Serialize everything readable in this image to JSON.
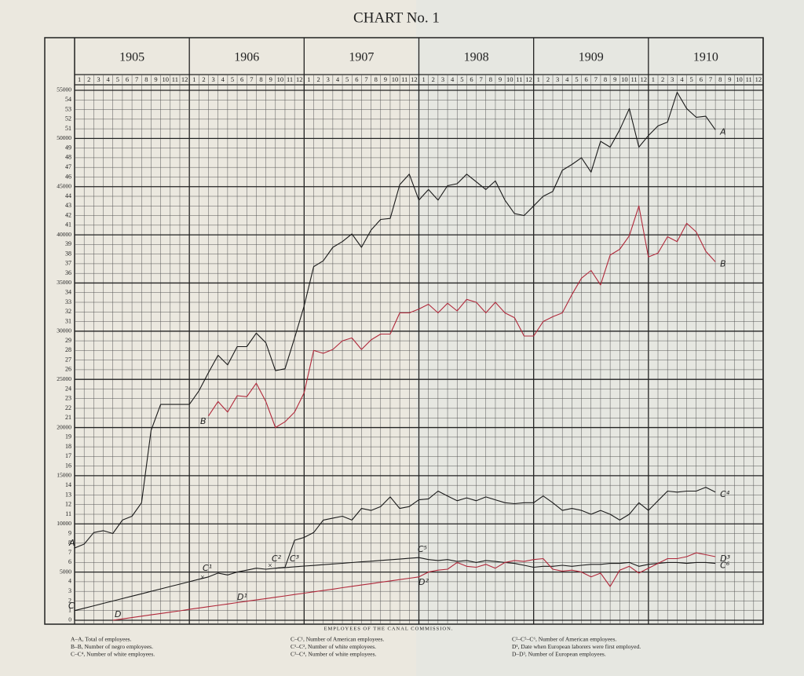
{
  "chart_data": {
    "type": "line",
    "title": "CHART No. 1",
    "caption": "EMPLOYEES OF THE CANAL COMMISSION.",
    "years": [
      "1905",
      "1906",
      "1907",
      "1908",
      "1909",
      "1910"
    ],
    "categories": [
      "1",
      "2",
      "3",
      "4",
      "5",
      "6",
      "7",
      "8",
      "9",
      "10",
      "11",
      "12",
      "1",
      "2",
      "3",
      "4",
      "5",
      "6",
      "7",
      "8",
      "9",
      "10",
      "11",
      "12",
      "1",
      "2",
      "3",
      "4",
      "5",
      "6",
      "7",
      "8",
      "9",
      "10",
      "11",
      "12",
      "1",
      "2",
      "3",
      "4",
      "5",
      "6",
      "7",
      "8",
      "9",
      "10",
      "11",
      "12",
      "1",
      "2",
      "3",
      "4",
      "5",
      "6",
      "7",
      "8",
      "9",
      "10",
      "11",
      "12",
      "1",
      "2",
      "3",
      "4",
      "5",
      "6",
      "7",
      "8",
      "9",
      "10",
      "11",
      "12"
    ],
    "ylim": [
      0,
      55000
    ],
    "yticks": [
      0,
      {
        "value": 1000,
        "label": "1"
      },
      {
        "value": 2000,
        "label": "2"
      },
      {
        "value": 3000,
        "label": "3"
      },
      {
        "value": 4000,
        "label": "4"
      },
      5000,
      {
        "value": 6000,
        "label": "6"
      },
      {
        "value": 7000,
        "label": "7"
      },
      {
        "value": 8000,
        "label": "8"
      },
      {
        "value": 9000,
        "label": "9"
      },
      10000,
      {
        "value": 11000,
        "label": "11"
      },
      {
        "value": 12000,
        "label": "12"
      },
      {
        "value": 13000,
        "label": "13"
      },
      {
        "value": 14000,
        "label": "14"
      },
      15000,
      {
        "value": 16000,
        "label": "16"
      },
      {
        "value": 17000,
        "label": "17"
      },
      {
        "value": 18000,
        "label": "18"
      },
      {
        "value": 19000,
        "label": "19"
      },
      20000,
      {
        "value": 21000,
        "label": "21"
      },
      {
        "value": 22000,
        "label": "22"
      },
      {
        "value": 23000,
        "label": "23"
      },
      {
        "value": 24000,
        "label": "24"
      },
      25000,
      {
        "value": 26000,
        "label": "26"
      },
      {
        "value": 27000,
        "label": "27"
      },
      {
        "value": 28000,
        "label": "28"
      },
      {
        "value": 29000,
        "label": "29"
      },
      30000,
      {
        "value": 31000,
        "label": "31"
      },
      {
        "value": 32000,
        "label": "32"
      },
      {
        "value": 33000,
        "label": "33"
      },
      {
        "value": 34000,
        "label": "34"
      },
      35000,
      {
        "value": 36000,
        "label": "36"
      },
      {
        "value": 37000,
        "label": "37"
      },
      {
        "value": 38000,
        "label": "38"
      },
      {
        "value": 39000,
        "label": "39"
      },
      40000,
      {
        "value": 41000,
        "label": "41"
      },
      {
        "value": 42000,
        "label": "42"
      },
      {
        "value": 43000,
        "label": "43"
      },
      {
        "value": 44000,
        "label": "44"
      },
      45000,
      {
        "value": 46000,
        "label": "46"
      },
      {
        "value": 47000,
        "label": "47"
      },
      {
        "value": 48000,
        "label": "48"
      },
      {
        "value": 49000,
        "label": "49"
      },
      50000,
      {
        "value": 51000,
        "label": "51"
      },
      {
        "value": 52000,
        "label": "52"
      },
      {
        "value": 53000,
        "label": "53"
      },
      {
        "value": 54000,
        "label": "54"
      },
      55000
    ],
    "grid": true,
    "series": [
      {
        "name": "A",
        "color": "#1a1a1a",
        "values": [
          7500,
          7900,
          9100,
          9300,
          9000,
          10400,
          10800,
          12200,
          19700,
          22400,
          22400,
          22400,
          22400,
          23800,
          25700,
          27500,
          26500,
          28400,
          28400,
          29800,
          28800,
          25900,
          26100,
          29300,
          32600,
          36700,
          37300,
          38700,
          39300,
          40100,
          38700,
          40500,
          41600,
          41700,
          45200,
          46300,
          43600,
          44700,
          43600,
          45100,
          45300,
          46300,
          45500,
          44700,
          45600,
          43600,
          42200,
          42000,
          43000,
          44000,
          44500,
          46700,
          47300,
          48000,
          46500,
          49700,
          49100,
          50900,
          53100,
          49100,
          50300,
          51300,
          51700,
          54800,
          53100,
          52200,
          52300,
          50900,
          null,
          null,
          null,
          null
        ]
      },
      {
        "name": "B",
        "color": "#b0283a",
        "values": [
          null,
          null,
          null,
          null,
          null,
          null,
          null,
          null,
          null,
          null,
          null,
          null,
          null,
          null,
          21200,
          22700,
          21600,
          23300,
          23200,
          24600,
          22700,
          20000,
          20600,
          21600,
          23600,
          28000,
          27700,
          28100,
          29000,
          29300,
          28100,
          29100,
          29700,
          29700,
          31900,
          31900,
          32300,
          32800,
          31900,
          32900,
          32100,
          33300,
          33000,
          31900,
          33000,
          31900,
          31400,
          29500,
          29500,
          31000,
          31500,
          31900,
          33800,
          35500,
          36300,
          34800,
          37900,
          38500,
          39900,
          43000,
          37700,
          38100,
          39800,
          39300,
          41200,
          40300,
          38300,
          37200,
          null,
          null,
          null,
          null
        ]
      },
      {
        "name": "C⁴",
        "color": "#1a1a1a",
        "values": [
          1000,
          1250,
          1500,
          1750,
          2000,
          2250,
          2500,
          2750,
          3000,
          3250,
          3500,
          3750,
          4000,
          4250,
          4500,
          4900,
          4700,
          5000,
          5200,
          5400,
          5300,
          5400,
          5500,
          8300,
          8600,
          9100,
          10400,
          10600,
          10800,
          10400,
          11600,
          11400,
          11800,
          12800,
          11600,
          11800,
          12500,
          12600,
          13400,
          12900,
          12400,
          12700,
          12400,
          12800,
          12500,
          12200,
          12100,
          12200,
          12200,
          12900,
          12200,
          11400,
          11600,
          11400,
          11000,
          11400,
          11000,
          10400,
          11000,
          12200,
          11400,
          12400,
          13400,
          13300,
          13400,
          13400,
          13800,
          13300,
          null,
          null,
          null,
          null
        ]
      },
      {
        "name": "C⁶",
        "color": "#1a1a1a",
        "values": [
          null,
          null,
          null,
          null,
          null,
          null,
          null,
          null,
          null,
          null,
          null,
          null,
          null,
          null,
          null,
          null,
          null,
          null,
          null,
          null,
          null,
          5400,
          5470,
          5550,
          5620,
          5690,
          5770,
          5840,
          5910,
          5990,
          6060,
          6130,
          6210,
          6280,
          6350,
          6430,
          6500,
          6300,
          6200,
          6300,
          6100,
          6200,
          6000,
          6200,
          6100,
          6000,
          5900,
          5700,
          5500,
          5600,
          5600,
          5700,
          5600,
          5700,
          5800,
          5800,
          5900,
          5900,
          6000,
          5600,
          5800,
          5900,
          6000,
          6000,
          5900,
          6000,
          6000,
          5900,
          null,
          null,
          null,
          null
        ]
      },
      {
        "name": "D³",
        "color": "#b0283a",
        "values": [
          null,
          null,
          null,
          null,
          0,
          140,
          280,
          420,
          560,
          700,
          840,
          980,
          1130,
          1270,
          1410,
          1550,
          1690,
          1830,
          1970,
          2110,
          2250,
          2390,
          2530,
          2670,
          2810,
          2950,
          3090,
          3230,
          3380,
          3520,
          3660,
          3800,
          3940,
          4080,
          4220,
          4360,
          4500,
          5000,
          5200,
          5300,
          6000,
          5600,
          5500,
          5800,
          5400,
          6000,
          6200,
          6100,
          6300,
          6400,
          5300,
          5100,
          5200,
          5000,
          4500,
          4900,
          3500,
          5200,
          5600,
          4900,
          5400,
          5900,
          6400,
          6400,
          6600,
          7000,
          6800,
          6600,
          null,
          null,
          null,
          null
        ]
      }
    ],
    "annotations": [
      "A",
      "B",
      "C",
      "C¹",
      "C²",
      "C³",
      "C⁵",
      "D",
      "D¹",
      "D²"
    ],
    "notes": [
      "A–A, Total of employees.",
      "B–B, Number of negro employees.",
      "C–C⁴, Number of white employees.",
      "C–C¹, Number of American employees.",
      "C¹–C², Number of white employees.",
      "C³–C⁴, Number of white employees.",
      "C²–C⁵–C⁶, Number of American employees.",
      "D¹, Date when European laborers were first employed.",
      "D–D³, Number of European employees."
    ]
  }
}
